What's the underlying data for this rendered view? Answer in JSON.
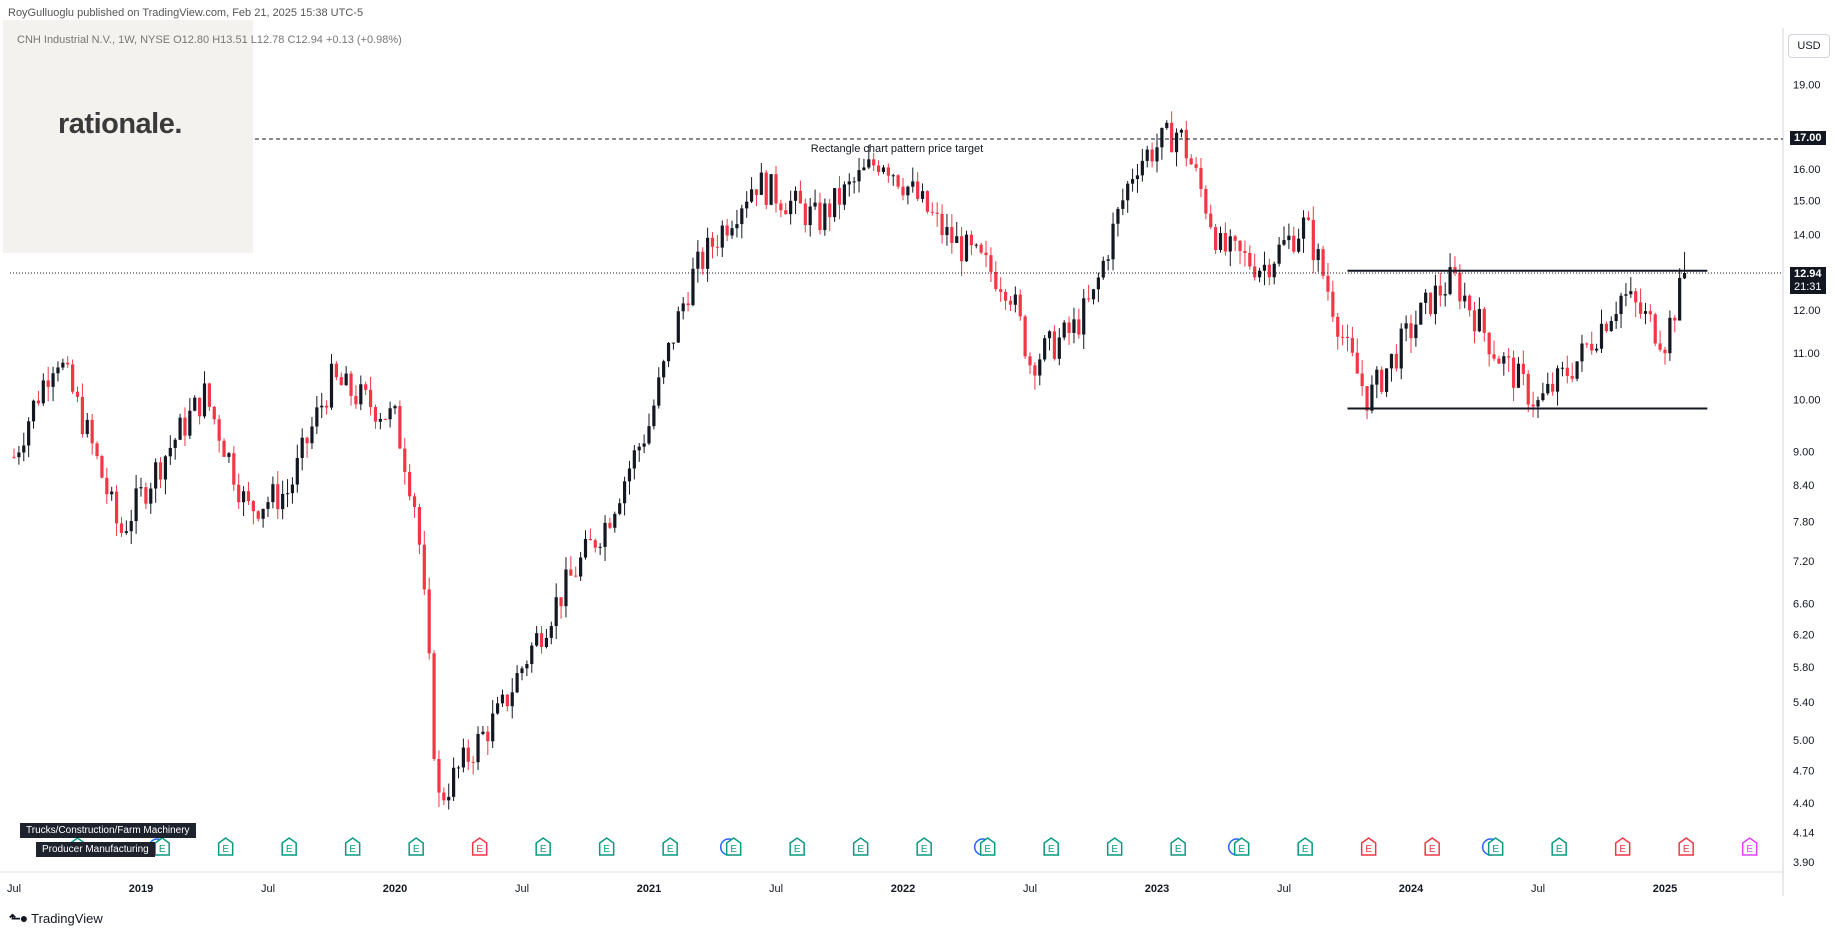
{
  "header": {
    "publisher": "RoyGulluoglu published on TradingView.com, Feb 21, 2025 15:38 UTC-5",
    "symbol_line": "CNH Industrial N.V., 1W, NYSE  O12.80  H13.51  L12.78  C12.94  +0.13 (+0.98%)"
  },
  "logo": {
    "text": "rationale."
  },
  "brand": {
    "name": "TradingView"
  },
  "currency_button": "USD",
  "tags": {
    "sector": "Trucks/Construction/Farm Machinery",
    "industry": "Producer Manufacturing"
  },
  "annotation": {
    "text": "Rectangle chart pattern price target"
  },
  "price_labels": {
    "target": "17.00",
    "last": "12.94",
    "countdown": "21:31"
  },
  "colors": {
    "up": "#131722",
    "down": "#f23645",
    "earnings_green": "#089981",
    "earnings_red": "#f23645",
    "dividend_blue": "#2962ff",
    "divider_pink": "#e040fb"
  },
  "chart_data": {
    "type": "candlestick",
    "scale": "log",
    "y_ticks": [
      "19.00",
      "16.00",
      "15.00",
      "14.00",
      "12.00",
      "11.00",
      "10.00",
      "9.00",
      "8.40",
      "7.80",
      "7.20",
      "6.60",
      "6.20",
      "5.80",
      "5.40",
      "5.00",
      "4.70",
      "4.40",
      "4.14",
      "3.90"
    ],
    "x_ticks": [
      "Jul",
      "2019",
      "Jul",
      "2020",
      "Jul",
      "2021",
      "Jul",
      "2022",
      "Jul",
      "2023",
      "Jul",
      "2024",
      "Jul",
      "2025"
    ],
    "price_anchors": [
      {
        "date": "2018-07",
        "price": 8.9
      },
      {
        "date": "2018-09",
        "price": 11.0
      },
      {
        "date": "2018-12",
        "price": 7.6
      },
      {
        "date": "2019-04",
        "price": 10.1
      },
      {
        "date": "2019-06",
        "price": 8.0
      },
      {
        "date": "2019-08",
        "price": 8.3
      },
      {
        "date": "2019-10",
        "price": 10.4
      },
      {
        "date": "2020-01",
        "price": 9.6
      },
      {
        "date": "2020-02",
        "price": 8.0
      },
      {
        "date": "2020-03",
        "price": 4.4
      },
      {
        "date": "2020-06",
        "price": 5.3
      },
      {
        "date": "2020-08",
        "price": 6.3
      },
      {
        "date": "2020-11",
        "price": 7.8
      },
      {
        "date": "2021-01",
        "price": 9.5
      },
      {
        "date": "2021-03",
        "price": 12.8
      },
      {
        "date": "2021-06",
        "price": 15.6
      },
      {
        "date": "2021-09",
        "price": 14.4
      },
      {
        "date": "2021-12",
        "price": 16.4
      },
      {
        "date": "2022-03",
        "price": 14.0
      },
      {
        "date": "2022-06",
        "price": 12.6
      },
      {
        "date": "2022-07",
        "price": 10.8
      },
      {
        "date": "2022-09",
        "price": 11.5
      },
      {
        "date": "2022-10",
        "price": 12.3
      },
      {
        "date": "2022-12",
        "price": 16.2
      },
      {
        "date": "2023-02",
        "price": 17.3
      },
      {
        "date": "2023-04",
        "price": 13.6
      },
      {
        "date": "2023-06",
        "price": 13.1
      },
      {
        "date": "2023-08",
        "price": 14.3
      },
      {
        "date": "2023-10",
        "price": 11.0
      },
      {
        "date": "2023-11",
        "price": 10.0
      },
      {
        "date": "2024-02",
        "price": 12.3
      },
      {
        "date": "2024-03",
        "price": 12.8
      },
      {
        "date": "2024-05",
        "price": 11.0
      },
      {
        "date": "2024-07",
        "price": 9.9
      },
      {
        "date": "2024-09",
        "price": 10.9
      },
      {
        "date": "2024-11",
        "price": 12.4
      },
      {
        "date": "2025-01",
        "price": 11.3
      },
      {
        "date": "2025-02",
        "price": 12.94
      }
    ],
    "lines": {
      "target": 17.0,
      "last_close": 12.94,
      "rectangle_top": 13.0,
      "rectangle_bottom": 9.82,
      "rectangle_start": "2023-10",
      "rectangle_end": "2025-03"
    },
    "events": [
      {
        "date": "2018-10",
        "kind": "E",
        "color": "green"
      },
      {
        "date": "2019-02",
        "kind": "D"
      },
      {
        "date": "2019-02",
        "kind": "E",
        "color": "green"
      },
      {
        "date": "2019-05",
        "kind": "E",
        "color": "green"
      },
      {
        "date": "2019-08",
        "kind": "E",
        "color": "green"
      },
      {
        "date": "2019-11",
        "kind": "E",
        "color": "green"
      },
      {
        "date": "2020-02",
        "kind": "E",
        "color": "green"
      },
      {
        "date": "2020-05",
        "kind": "E",
        "color": "red"
      },
      {
        "date": "2020-08",
        "kind": "E",
        "color": "green"
      },
      {
        "date": "2020-11",
        "kind": "E",
        "color": "green"
      },
      {
        "date": "2021-02",
        "kind": "E",
        "color": "green"
      },
      {
        "date": "2021-05",
        "kind": "D"
      },
      {
        "date": "2021-05",
        "kind": "E",
        "color": "green"
      },
      {
        "date": "2021-08",
        "kind": "E",
        "color": "green"
      },
      {
        "date": "2021-11",
        "kind": "E",
        "color": "green"
      },
      {
        "date": "2022-02",
        "kind": "E",
        "color": "green"
      },
      {
        "date": "2022-05",
        "kind": "D"
      },
      {
        "date": "2022-05",
        "kind": "E",
        "color": "green"
      },
      {
        "date": "2022-08",
        "kind": "E",
        "color": "green"
      },
      {
        "date": "2022-11",
        "kind": "E",
        "color": "green"
      },
      {
        "date": "2023-02",
        "kind": "E",
        "color": "green"
      },
      {
        "date": "2023-05",
        "kind": "D"
      },
      {
        "date": "2023-05",
        "kind": "E",
        "color": "green"
      },
      {
        "date": "2023-08",
        "kind": "E",
        "color": "green"
      },
      {
        "date": "2023-11",
        "kind": "E",
        "color": "red"
      },
      {
        "date": "2024-02",
        "kind": "E",
        "color": "red"
      },
      {
        "date": "2024-05",
        "kind": "D"
      },
      {
        "date": "2024-05",
        "kind": "E",
        "color": "green"
      },
      {
        "date": "2024-08",
        "kind": "E",
        "color": "green"
      },
      {
        "date": "2024-11",
        "kind": "E",
        "color": "red"
      },
      {
        "date": "2025-02",
        "kind": "E",
        "color": "red"
      },
      {
        "date": "2025-05",
        "kind": "E",
        "color": "pink"
      }
    ]
  }
}
